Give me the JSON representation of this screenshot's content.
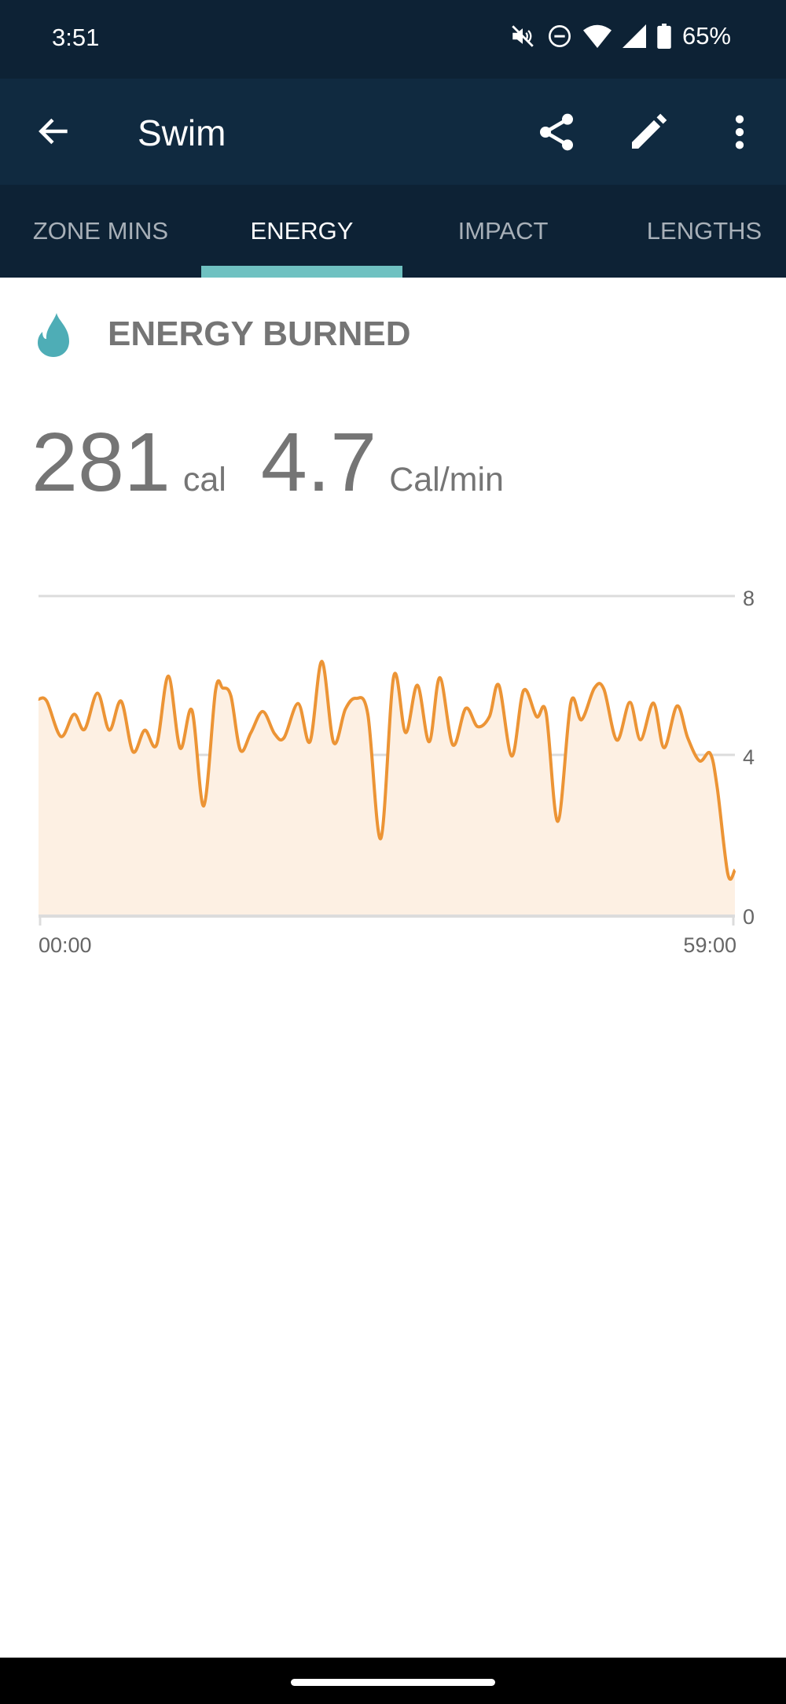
{
  "status_bar": {
    "time": "3:51",
    "battery": "65%",
    "icons": [
      "mute-icon",
      "dnd-icon",
      "wifi-icon",
      "signal-icon",
      "battery-icon"
    ]
  },
  "app_bar": {
    "title": "Swim",
    "icons": [
      "back-arrow-icon",
      "share-icon",
      "edit-icon",
      "more-vert-icon"
    ]
  },
  "tabs": [
    {
      "label": "ZONE MINS",
      "active": false
    },
    {
      "label": "ENERGY",
      "active": true
    },
    {
      "label": "IMPACT",
      "active": false
    },
    {
      "label": "LENGTHS",
      "active": false
    }
  ],
  "section": {
    "title": "ENERGY BURNED",
    "icon": "flame-icon",
    "icon_color": "#4eadb6"
  },
  "stats": {
    "total_value": "281",
    "total_unit": "cal",
    "rate_value": "4.7",
    "rate_unit": "Cal/min"
  },
  "colors": {
    "status_bar": "#0d2235",
    "app_bar": "#102a40",
    "accent": "#6fc1c1",
    "line": "#ec9435",
    "fill": "#fdf0e3"
  },
  "chart_data": {
    "type": "area",
    "x_unit": "minutes",
    "x_tick_labels": [
      "00:00",
      "59:00"
    ],
    "y_tick_labels": [
      "8",
      "4",
      "0"
    ],
    "ylim": [
      0,
      8
    ],
    "xlim": [
      0,
      59
    ],
    "grid": true,
    "x": [
      0,
      0.7,
      1.9,
      3.0,
      3.9,
      5.0,
      6.0,
      7.0,
      8.0,
      9.0,
      10.0,
      11.0,
      12.0,
      13.0,
      14.0,
      15.0,
      15.6,
      16.3,
      17.1,
      18.0,
      19.0,
      20.0,
      20.8,
      22.0,
      23.0,
      24.0,
      25.0,
      26.0,
      26.9,
      27.9,
      29.0,
      30.1,
      31.1,
      32.1,
      33.1,
      34.0,
      35.1,
      36.2,
      37.2,
      38.2,
      39.0,
      40.1,
      41.1,
      42.2,
      43.0,
      44.0,
      45.1,
      46.0,
      47.1,
      47.9,
      49.0,
      50.1,
      51.0,
      52.1,
      53.0,
      54.1,
      55.0,
      56.0,
      56.9,
      57.5,
      58.4,
      59.0
    ],
    "y": [
      5.41,
      5.36,
      4.47,
      5.03,
      4.65,
      5.56,
      4.63,
      5.36,
      4.09,
      4.63,
      4.26,
      5.99,
      4.18,
      5.13,
      2.73,
      5.63,
      5.69,
      5.49,
      4.13,
      4.57,
      5.1,
      4.54,
      4.44,
      5.3,
      4.34,
      6.36,
      4.32,
      5.16,
      5.43,
      5.03,
      1.91,
      5.99,
      4.57,
      5.76,
      4.34,
      5.95,
      4.26,
      5.18,
      4.72,
      4.97,
      5.76,
      3.98,
      5.63,
      4.97,
      5.07,
      2.34,
      5.33,
      4.89,
      5.69,
      5.66,
      4.38,
      5.33,
      4.39,
      5.31,
      4.19,
      5.24,
      4.44,
      3.86,
      4.05,
      3.19,
      1.02,
      1.12
    ]
  }
}
